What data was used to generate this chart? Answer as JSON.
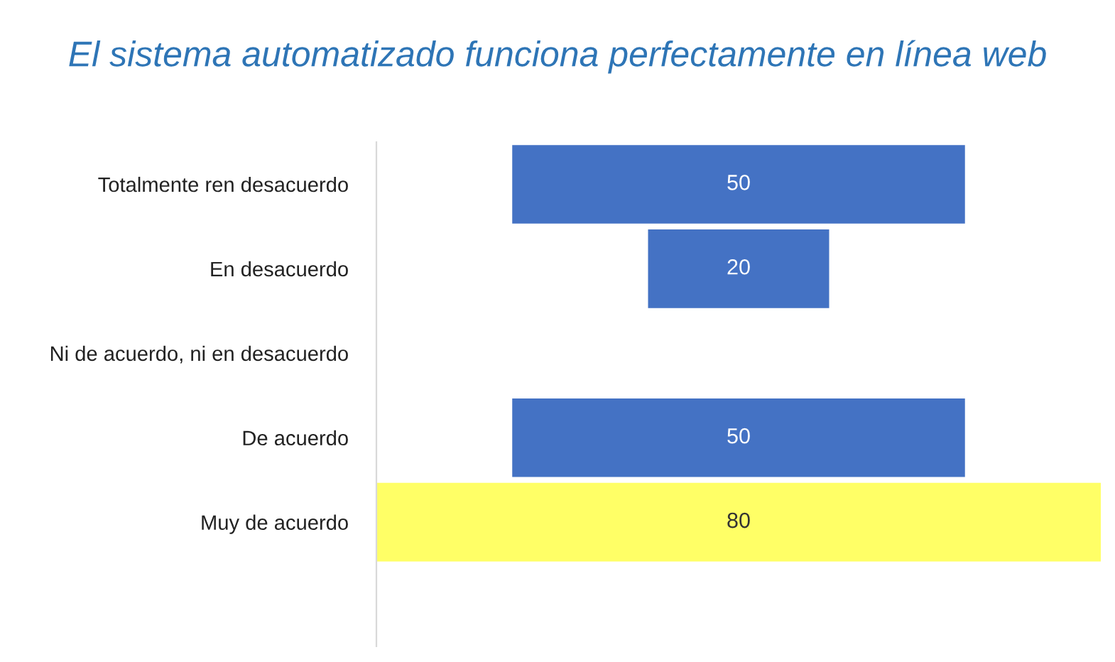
{
  "chart_data": {
    "type": "other",
    "title": "El sistema automatizado funciona perfectamente en línea web",
    "categories": [
      "Totalmente ren desacuerdo",
      "En desacuerdo",
      "Ni de acuerdo, ni en desacuerdo",
      "De acuerdo",
      "Muy de acuerdo"
    ],
    "values": [
      50,
      20,
      null,
      50,
      80
    ],
    "colors": [
      "#4472c4",
      "#4472c4",
      "#4472c4",
      "#4472c4",
      "#ffff66"
    ],
    "data_labels": true
  }
}
